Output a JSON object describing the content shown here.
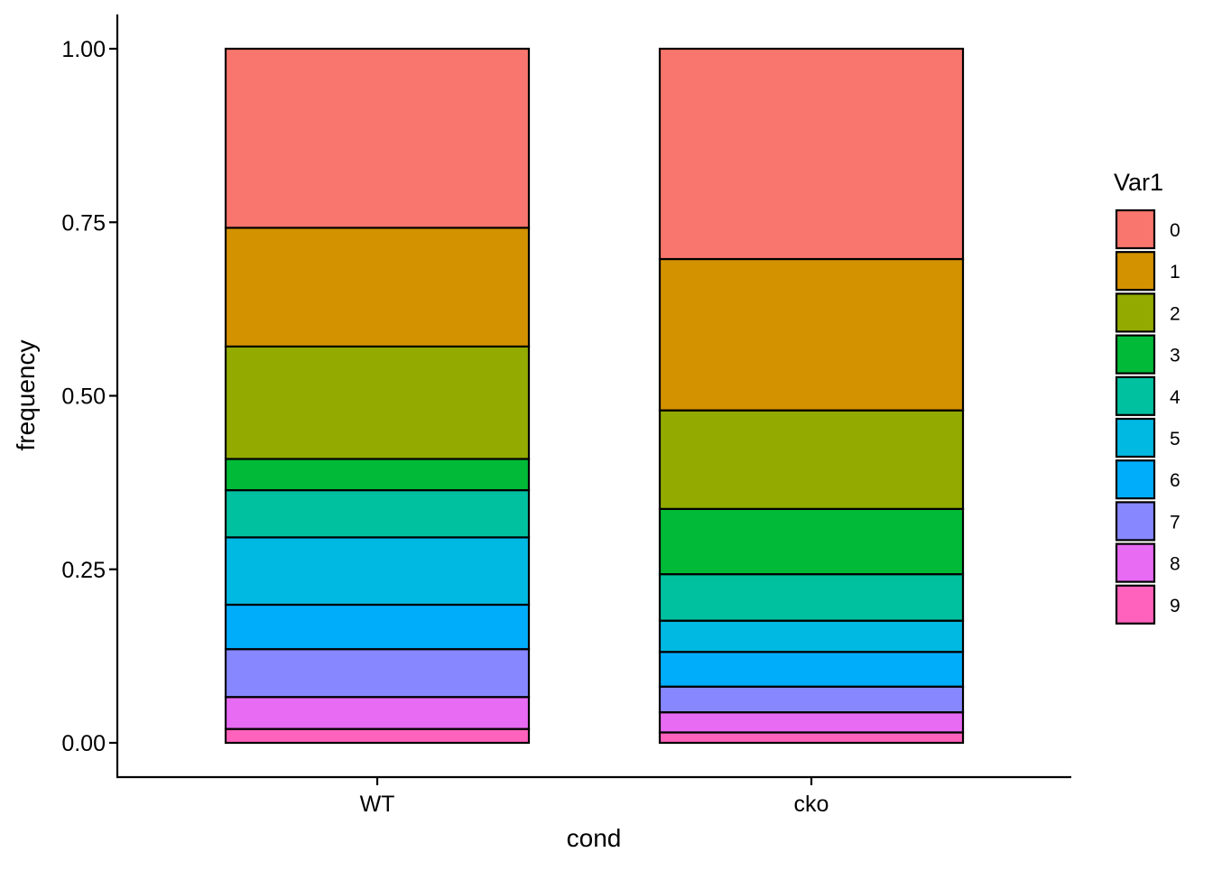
{
  "chart_data": {
    "type": "bar",
    "stacked": true,
    "xlabel": "cond",
    "ylabel": "frequency",
    "ylim": [
      0,
      1
    ],
    "yticks": [
      "0.00",
      "0.25",
      "0.50",
      "0.75",
      "1.00"
    ],
    "ytick_values": [
      0,
      0.25,
      0.5,
      0.75,
      1.0
    ],
    "categories": [
      "WT",
      "cko"
    ],
    "legend": {
      "title": "Var1",
      "placement": "right"
    },
    "grid": false,
    "series": [
      {
        "name": "0",
        "color": "#F8766D",
        "values": [
          0.258,
          0.303
        ]
      },
      {
        "name": "1",
        "color": "#D39200",
        "values": [
          0.171,
          0.218
        ]
      },
      {
        "name": "2",
        "color": "#93AA00",
        "values": [
          0.162,
          0.142
        ]
      },
      {
        "name": "3",
        "color": "#00BA38",
        "values": [
          0.045,
          0.094
        ]
      },
      {
        "name": "4",
        "color": "#00C19F",
        "values": [
          0.068,
          0.067
        ]
      },
      {
        "name": "5",
        "color": "#00B9E3",
        "values": [
          0.097,
          0.045
        ]
      },
      {
        "name": "6",
        "color": "#00ADFA",
        "values": [
          0.064,
          0.05
        ]
      },
      {
        "name": "7",
        "color": "#8788FF",
        "values": [
          0.069,
          0.037
        ]
      },
      {
        "name": "8",
        "color": "#E76BF3",
        "values": [
          0.046,
          0.029
        ]
      },
      {
        "name": "9",
        "color": "#FF62BC",
        "values": [
          0.02,
          0.015
        ]
      }
    ]
  }
}
